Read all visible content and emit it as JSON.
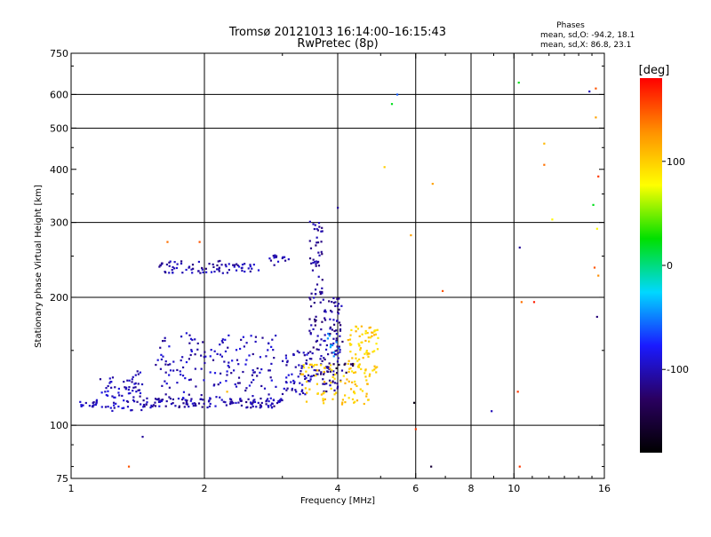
{
  "chart_data": {
    "type": "scatter",
    "title": "Tromsø 20121013 16:14:00–16:15:43",
    "subtitle": "RwPretec (8p)",
    "xlabel": "Frequency [MHz]",
    "ylabel": "Stationary phase Virtual Height [km]",
    "x_scale": "log",
    "y_scale": "log",
    "xlim": [
      1,
      16
    ],
    "ylim": [
      75,
      750
    ],
    "x_ticks": [
      1,
      2,
      4,
      6,
      8,
      10,
      16
    ],
    "x_tick_labels": [
      "1",
      "2",
      "4",
      "6",
      "8",
      "10",
      "16"
    ],
    "x_gridlines": [
      2,
      4,
      6,
      8,
      10
    ],
    "y_ticks": [
      75,
      100,
      200,
      300,
      400,
      500,
      600,
      750
    ],
    "y_tick_labels": [
      "75",
      "100",
      "200",
      "300",
      "400",
      "500",
      "600",
      "750"
    ],
    "y_gridlines": [
      100,
      200,
      300,
      500,
      600
    ],
    "grid": true,
    "colorbar": {
      "label": "[deg]",
      "min": -180,
      "max": 180,
      "ticks": [
        100,
        0,
        -100
      ],
      "tick_labels": [
        "100",
        "0",
        "-100"
      ],
      "colors": [
        "#000000",
        "#2a0060",
        "#1a1aff",
        "#00d8ff",
        "#00e000",
        "#ffff00",
        "#ff9000",
        "#ff0000"
      ]
    },
    "stats": {
      "heading": "Phases",
      "line_o": "mean, sd,O: -94.2, 18.1",
      "line_x": "mean, sd,X: 86.8, 23.1"
    },
    "clusters": [
      {
        "x0": 1.03,
        "x1": 1.14,
        "y0": 110,
        "y1": 114,
        "n": 15,
        "phase": -100
      },
      {
        "x0": 1.14,
        "x1": 1.45,
        "y0": 108,
        "y1": 130,
        "n": 70,
        "phase": -100
      },
      {
        "x0": 1.35,
        "x1": 1.45,
        "y0": 125,
        "y1": 135,
        "n": 8,
        "phase": -100
      },
      {
        "x0": 1.45,
        "x1": 3.0,
        "y0": 110,
        "y1": 116,
        "n": 130,
        "phase": -105
      },
      {
        "x0": 1.55,
        "x1": 2.95,
        "y0": 115,
        "y1": 165,
        "n": 160,
        "phase": -100
      },
      {
        "x0": 1.58,
        "x1": 2.3,
        "y0": 228,
        "y1": 244,
        "n": 60,
        "phase": -105
      },
      {
        "x0": 2.3,
        "x1": 2.65,
        "y0": 230,
        "y1": 240,
        "n": 20,
        "phase": -100
      },
      {
        "x0": 2.8,
        "x1": 3.1,
        "y0": 238,
        "y1": 252,
        "n": 15,
        "phase": -105
      },
      {
        "x0": 3.0,
        "x1": 3.5,
        "y0": 118,
        "y1": 150,
        "n": 60,
        "phase": -100
      },
      {
        "x0": 3.45,
        "x1": 3.7,
        "y0": 130,
        "y1": 305,
        "n": 90,
        "phase": -110
      },
      {
        "x0": 3.7,
        "x1": 4.1,
        "y0": 120,
        "y1": 200,
        "n": 100,
        "phase": -110
      },
      {
        "x0": 3.3,
        "x1": 4.7,
        "y0": 112,
        "y1": 140,
        "n": 90,
        "phase": 100
      },
      {
        "x0": 4.2,
        "x1": 4.95,
        "y0": 130,
        "y1": 172,
        "n": 70,
        "phase": 100
      },
      {
        "x0": 3.75,
        "x1": 4.05,
        "y0": 145,
        "y1": 165,
        "n": 10,
        "phase": -40
      },
      {
        "x0": 3.85,
        "x1": 4.35,
        "y0": 132,
        "y1": 140,
        "n": 12,
        "phase": -140
      }
    ],
    "scattered_points": [
      {
        "x": 1.35,
        "y": 80,
        "phase": 150
      },
      {
        "x": 1.45,
        "y": 94,
        "phase": -110
      },
      {
        "x": 1.65,
        "y": 270,
        "phase": 140
      },
      {
        "x": 1.95,
        "y": 270,
        "phase": 150
      },
      {
        "x": 2.25,
        "y": 120,
        "phase": 110
      },
      {
        "x": 4.0,
        "y": 325,
        "phase": -110
      },
      {
        "x": 5.1,
        "y": 405,
        "phase": 100
      },
      {
        "x": 5.3,
        "y": 570,
        "phase": 20
      },
      {
        "x": 5.45,
        "y": 600,
        "phase": -60
      },
      {
        "x": 5.85,
        "y": 280,
        "phase": 120
      },
      {
        "x": 6.0,
        "y": 98,
        "phase": 160
      },
      {
        "x": 5.95,
        "y": 113,
        "phase": -170
      },
      {
        "x": 6.5,
        "y": 80,
        "phase": -150
      },
      {
        "x": 6.55,
        "y": 370,
        "phase": 120
      },
      {
        "x": 6.9,
        "y": 207,
        "phase": 150
      },
      {
        "x": 8.9,
        "y": 108,
        "phase": -100
      },
      {
        "x": 10.2,
        "y": 120,
        "phase": 160
      },
      {
        "x": 10.25,
        "y": 640,
        "phase": 20
      },
      {
        "x": 10.3,
        "y": 262,
        "phase": -110
      },
      {
        "x": 10.3,
        "y": 80,
        "phase": 160
      },
      {
        "x": 10.4,
        "y": 195,
        "phase": 140
      },
      {
        "x": 11.1,
        "y": 195,
        "phase": 170
      },
      {
        "x": 11.7,
        "y": 460,
        "phase": 110
      },
      {
        "x": 11.7,
        "y": 410,
        "phase": 140
      },
      {
        "x": 12.2,
        "y": 305,
        "phase": 80
      },
      {
        "x": 14.8,
        "y": 610,
        "phase": -100
      },
      {
        "x": 15.1,
        "y": 330,
        "phase": 20
      },
      {
        "x": 15.2,
        "y": 235,
        "phase": 150
      },
      {
        "x": 15.3,
        "y": 530,
        "phase": 120
      },
      {
        "x": 15.3,
        "y": 620,
        "phase": 150
      },
      {
        "x": 15.4,
        "y": 290,
        "phase": 80
      },
      {
        "x": 15.5,
        "y": 385,
        "phase": 160
      },
      {
        "x": 15.5,
        "y": 225,
        "phase": 130
      },
      {
        "x": 15.4,
        "y": 180,
        "phase": -120
      }
    ]
  }
}
